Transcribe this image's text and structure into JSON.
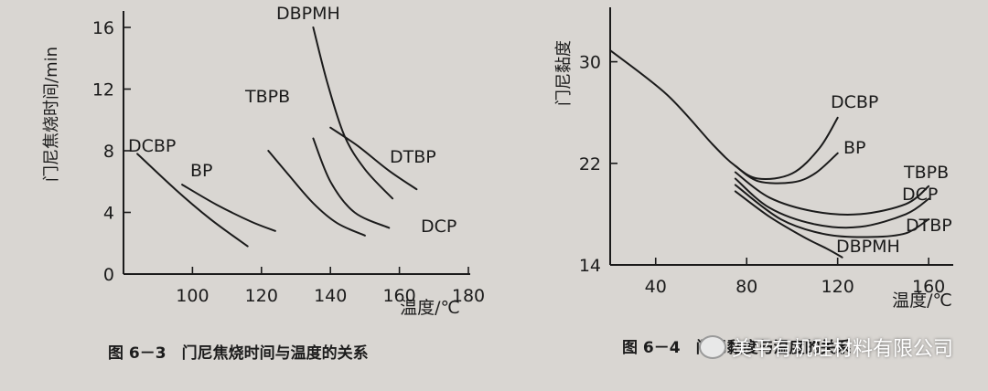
{
  "chart_data": [
    {
      "type": "line",
      "title": "图 6-3　门尼焦烧时间与温度的关系",
      "xlabel": "温度/℃",
      "ylabel": "门尼焦烧时间/min",
      "xlim": [
        80,
        180
      ],
      "ylim": [
        0,
        16
      ],
      "xticks": [
        "100",
        "120",
        "140",
        "160",
        "180"
      ],
      "yticks": [
        "0",
        "4",
        "8",
        "12",
        "16"
      ],
      "grid": false,
      "legend": "none",
      "series": [
        {
          "name": "DCBP",
          "x": [
            84,
            95,
            105,
            116
          ],
          "y": [
            7.8,
            5.5,
            3.6,
            1.8
          ]
        },
        {
          "name": "BP",
          "x": [
            97,
            107,
            117,
            124
          ],
          "y": [
            5.8,
            4.5,
            3.4,
            2.8
          ]
        },
        {
          "name": "TBPB",
          "x": [
            122,
            128,
            135,
            142,
            150
          ],
          "y": [
            8.0,
            6.4,
            4.6,
            3.3,
            2.5
          ]
        },
        {
          "name": "DCP",
          "x": [
            135,
            140,
            147,
            157
          ],
          "y": [
            8.8,
            6.0,
            4.0,
            3.0
          ]
        },
        {
          "name": "DTBP",
          "x": [
            140,
            148,
            157,
            165
          ],
          "y": [
            9.5,
            8.3,
            6.7,
            5.5
          ]
        },
        {
          "name": "DBPMH",
          "x": [
            135,
            139,
            144,
            150,
            158
          ],
          "y": [
            16.0,
            12.5,
            9.0,
            6.8,
            4.9
          ]
        }
      ]
    },
    {
      "type": "line",
      "title": "图 6-4　门尼黏度与温度的关系",
      "xlabel": "温度/℃",
      "ylabel": "门尼黏度",
      "xlim": [
        20,
        170
      ],
      "ylim": [
        14,
        34
      ],
      "xticks": [
        "40",
        "80",
        "120",
        "160"
      ],
      "yticks": [
        "14",
        "22",
        "30"
      ],
      "grid": false,
      "legend": "none",
      "series": [
        {
          "name": "DCBP",
          "x": [
            20,
            45,
            65,
            75,
            85,
            100,
            112,
            120
          ],
          "y": [
            30.9,
            27.4,
            23.5,
            21.8,
            20.8,
            21.2,
            23.2,
            25.6
          ]
        },
        {
          "name": "BP",
          "x": [
            75,
            85,
            100,
            110,
            120
          ],
          "y": [
            21.8,
            20.6,
            20.5,
            21.2,
            22.8
          ]
        },
        {
          "name": "TBPB",
          "x": [
            75,
            90,
            110,
            130,
            150,
            160
          ],
          "y": [
            21.3,
            19.3,
            18.2,
            18.0,
            18.8,
            20.2
          ]
        },
        {
          "name": "DCP",
          "x": [
            75,
            90,
            110,
            130,
            150,
            160
          ],
          "y": [
            20.8,
            18.5,
            17.2,
            17.0,
            18.0,
            19.2
          ]
        },
        {
          "name": "DTBP",
          "x": [
            75,
            95,
            115,
            135,
            150,
            160
          ],
          "y": [
            20.3,
            17.6,
            16.4,
            16.2,
            16.5,
            17.6
          ]
        },
        {
          "name": "DBPMH",
          "x": [
            75,
            90,
            105,
            115,
            122
          ],
          "y": [
            19.8,
            17.8,
            16.2,
            15.3,
            14.6
          ]
        }
      ]
    }
  ],
  "captions": {
    "left": "图 6－3　门尼焦烧时间与温度的关系",
    "right": "图 6－4　门尼黏度与温度的关系"
  },
  "watermark": {
    "text": "美平有机硅材料有限公司",
    "icon": "wechat-official-account-icon"
  },
  "colors": {
    "paper": "#d9d6d2",
    "ink": "#1b1b1b"
  }
}
